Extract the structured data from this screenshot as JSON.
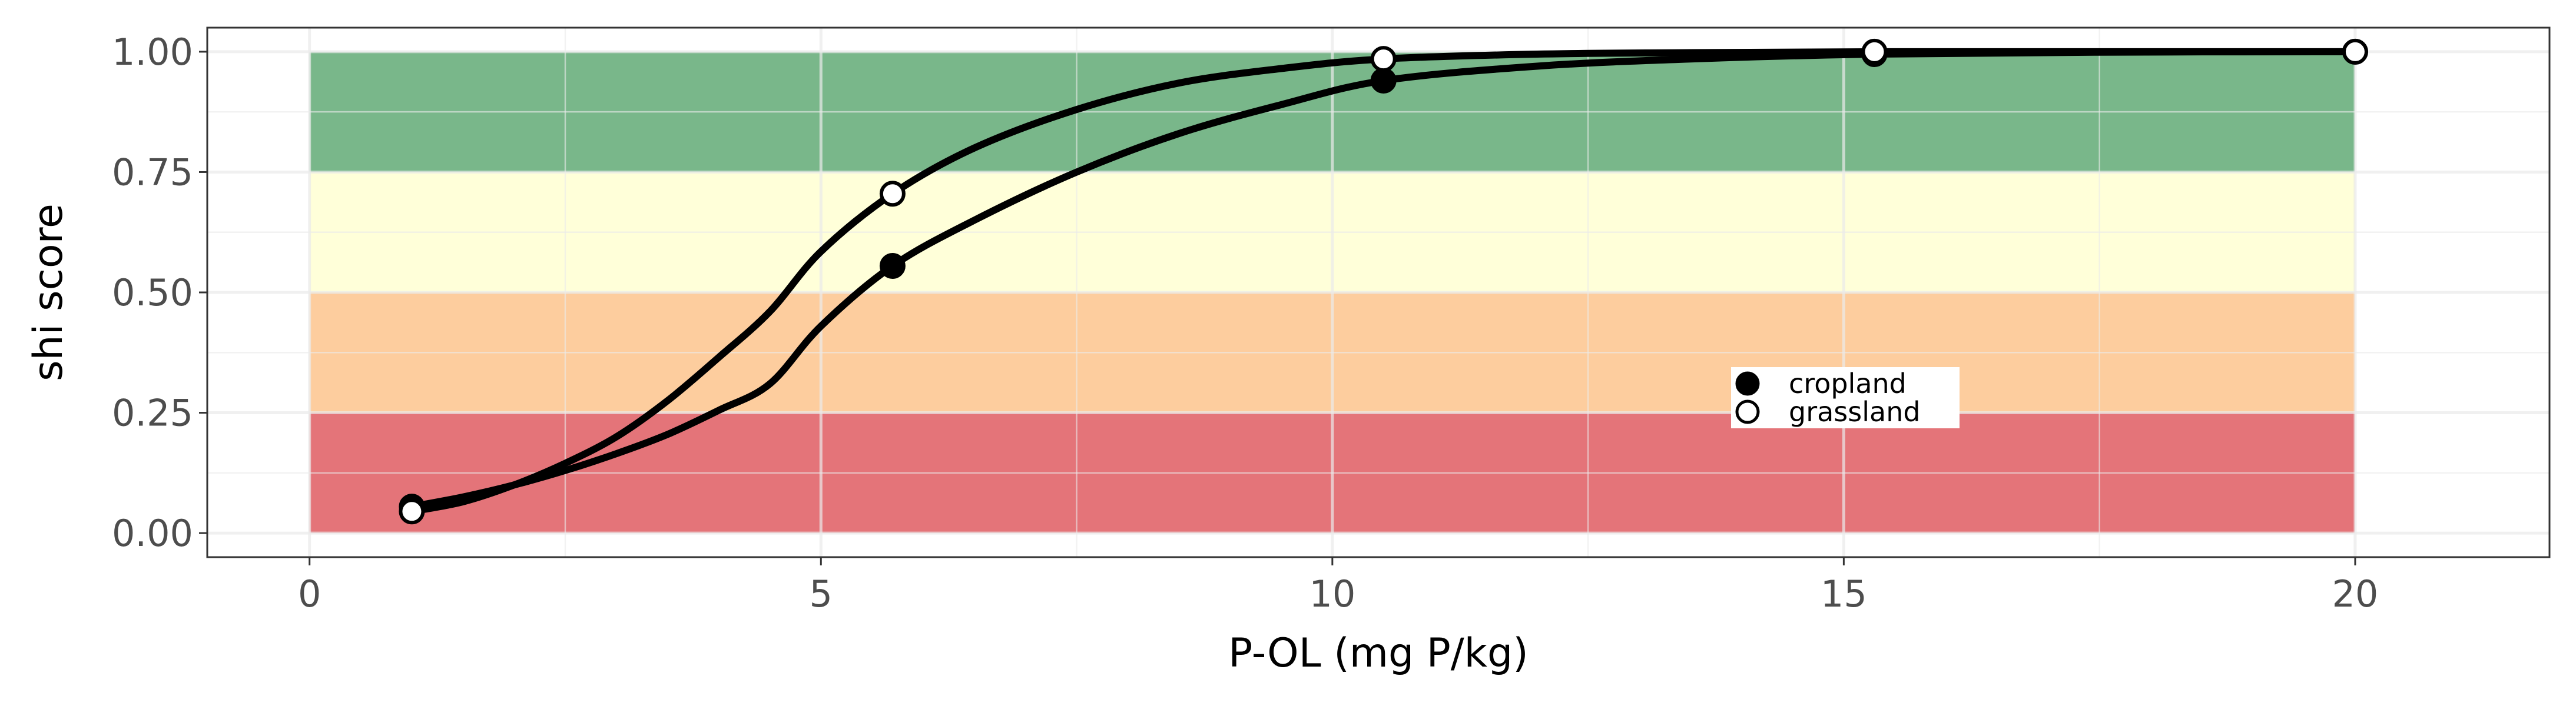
{
  "chart_data": {
    "type": "line",
    "xlabel": "P-OL (mg P/kg)",
    "ylabel": "shi score",
    "xlim": [
      -1,
      21.9
    ],
    "ylim": [
      -0.05,
      1.05
    ],
    "x_ticks": [
      {
        "value": 0,
        "label": "0"
      },
      {
        "value": 5,
        "label": "5"
      },
      {
        "value": 10,
        "label": "10"
      },
      {
        "value": 15,
        "label": "15"
      },
      {
        "value": 20,
        "label": "20"
      }
    ],
    "y_ticks": [
      {
        "value": 0,
        "label": "0.00"
      },
      {
        "value": 0.25,
        "label": "0.25"
      },
      {
        "value": 0.5,
        "label": "0.50"
      },
      {
        "value": 0.75,
        "label": "0.75"
      },
      {
        "value": 1,
        "label": "1.00"
      }
    ],
    "grid": true,
    "bands": [
      {
        "from": 0,
        "to": 0.25,
        "color": "#e06166"
      },
      {
        "from": 0.25,
        "to": 0.5,
        "color": "#fdc691"
      },
      {
        "from": 0.5,
        "to": 0.75,
        "color": "#ffffd4"
      },
      {
        "from": 0.75,
        "to": 1,
        "color": "#66ad7a"
      }
    ],
    "band_x_range": [
      0,
      20
    ],
    "series": [
      {
        "name": "cropland",
        "marker": "filled",
        "points": [
          {
            "x": 1,
            "y": 0.055
          },
          {
            "x": 5.7,
            "y": 0.555
          },
          {
            "x": 10.5,
            "y": 0.94
          },
          {
            "x": 15.3,
            "y": 0.995
          },
          {
            "x": 20,
            "y": 1.0
          }
        ],
        "curve": [
          [
            1,
            0.055
          ],
          [
            1.5,
            0.075
          ],
          [
            2,
            0.1
          ],
          [
            2.5,
            0.13
          ],
          [
            3,
            0.165
          ],
          [
            3.5,
            0.205
          ],
          [
            4,
            0.255
          ],
          [
            4.5,
            0.31
          ],
          [
            5,
            0.43
          ],
          [
            5.7,
            0.555
          ],
          [
            6.5,
            0.65
          ],
          [
            7.5,
            0.75
          ],
          [
            8.5,
            0.83
          ],
          [
            9.5,
            0.89
          ],
          [
            10.5,
            0.94
          ],
          [
            12,
            0.97
          ],
          [
            13.5,
            0.985
          ],
          [
            15.3,
            0.995
          ],
          [
            17.5,
            0.999
          ],
          [
            20,
            1.0
          ]
        ]
      },
      {
        "name": "grassland",
        "marker": "open",
        "points": [
          {
            "x": 1,
            "y": 0.045
          },
          {
            "x": 5.7,
            "y": 0.705
          },
          {
            "x": 10.5,
            "y": 0.985
          },
          {
            "x": 15.3,
            "y": 1.0
          },
          {
            "x": 20,
            "y": 1.0
          }
        ],
        "curve": [
          [
            1,
            0.045
          ],
          [
            1.5,
            0.065
          ],
          [
            2,
            0.1
          ],
          [
            2.5,
            0.145
          ],
          [
            3,
            0.2
          ],
          [
            3.5,
            0.275
          ],
          [
            4,
            0.365
          ],
          [
            4.5,
            0.46
          ],
          [
            5,
            0.585
          ],
          [
            5.7,
            0.705
          ],
          [
            6.5,
            0.8
          ],
          [
            7.5,
            0.88
          ],
          [
            8.5,
            0.935
          ],
          [
            9.5,
            0.965
          ],
          [
            10.5,
            0.985
          ],
          [
            12,
            0.995
          ],
          [
            13.5,
            0.998
          ],
          [
            15.3,
            1.0
          ],
          [
            17.5,
            1.0
          ],
          [
            20,
            1.0
          ]
        ]
      }
    ],
    "legend": {
      "placement": "inside-center-right",
      "entries": [
        {
          "label": "cropland",
          "marker": "filled"
        },
        {
          "label": "grassland",
          "marker": "open"
        }
      ]
    },
    "colors": {
      "line": "#000000",
      "grid": "#ebebeb",
      "panel_border": "#333333"
    }
  }
}
